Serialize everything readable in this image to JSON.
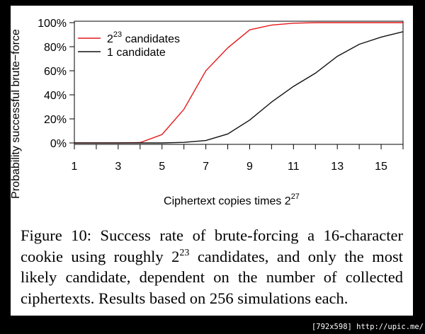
{
  "chart_data": {
    "type": "line",
    "xlabel": "Ciphertext copies times 2",
    "xlabel_sup": "27",
    "ylabel": "Probability successful brute−force",
    "x_ticks": [
      1,
      3,
      5,
      7,
      9,
      11,
      13,
      15
    ],
    "y_ticks": [
      "0%",
      "20%",
      "40%",
      "60%",
      "80%",
      "100%"
    ],
    "xlim": [
      1,
      16
    ],
    "ylim": [
      0,
      1
    ],
    "grid": false,
    "legend_position": "top-left",
    "series": [
      {
        "name": "2",
        "name_sup": "23",
        "name_rest": " candidates",
        "color": "#e41a1c",
        "x": [
          1,
          2,
          3,
          4,
          5,
          6,
          7,
          8,
          9,
          10,
          11,
          12,
          13,
          14,
          15,
          16
        ],
        "values": [
          0,
          0,
          0,
          0.003,
          0.07,
          0.28,
          0.6,
          0.79,
          0.94,
          0.98,
          0.995,
          1.0,
          1.0,
          1.0,
          1.0,
          1.0
        ]
      },
      {
        "name": "1 candidate",
        "color": "#111111",
        "x": [
          1,
          2,
          3,
          4,
          5,
          6,
          7,
          8,
          9,
          10,
          11,
          12,
          13,
          14,
          15,
          16
        ],
        "values": [
          0,
          0,
          0,
          0,
          0,
          0.005,
          0.02,
          0.075,
          0.19,
          0.34,
          0.47,
          0.58,
          0.72,
          0.82,
          0.88,
          0.925
        ]
      }
    ]
  },
  "caption": {
    "fig_label": "Figure 10:",
    "text_before": " Success rate of brute-forcing a 16-character cookie using roughly 2",
    "sup": "23",
    "text_after": " candidates, and only the most likely candidate, dependent on the number of collected ciphertexts. Results based on 256 simulations each."
  },
  "credit": "[792x598] http://upic.me/"
}
